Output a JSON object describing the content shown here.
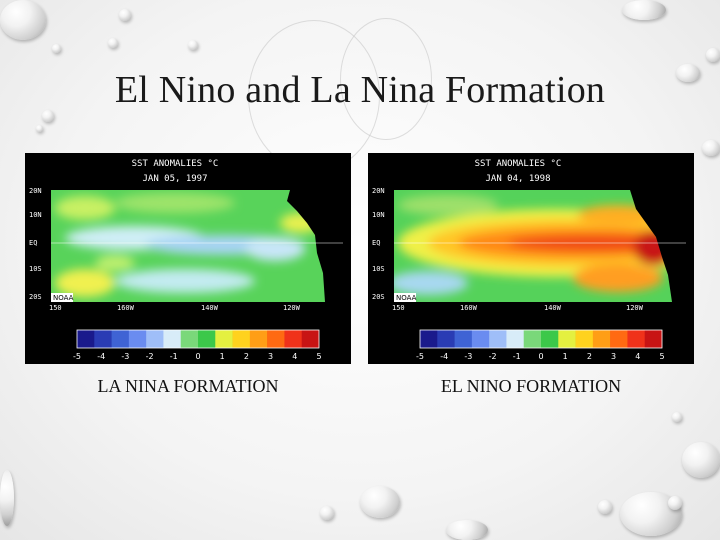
{
  "slide": {
    "title": "El Nino and La Nina Formation"
  },
  "panels": [
    {
      "id": "la-nina",
      "map_title": "SST ANOMALIES °C",
      "map_date": "JAN 05, 1997",
      "caption": "LA NINA FORMATION"
    },
    {
      "id": "el-nino",
      "map_title": "SST ANOMALIES °C",
      "map_date": "JAN 04, 1998",
      "caption": "EL NINO FORMATION"
    }
  ],
  "map_common": {
    "lat_labels": [
      "20N",
      "10N",
      "EQ",
      "10S",
      "20S"
    ],
    "lon_labels": [
      "150",
      "160W",
      "140W",
      "120W"
    ],
    "agency": "NOAA",
    "scale_ticks": [
      "-5",
      "-4",
      "-3",
      "-2",
      "-1",
      "0",
      "1",
      "2",
      "3",
      "4",
      "5"
    ],
    "scale_colors": [
      "#1a1a8c",
      "#2a3cb4",
      "#3f63d4",
      "#6a8cf0",
      "#9fbef8",
      "#d8ecf8",
      "#7ad87a",
      "#3cc84a",
      "#e4f040",
      "#ffd21e",
      "#ff9e16",
      "#ff6a12",
      "#f0321a",
      "#c81414"
    ]
  }
}
